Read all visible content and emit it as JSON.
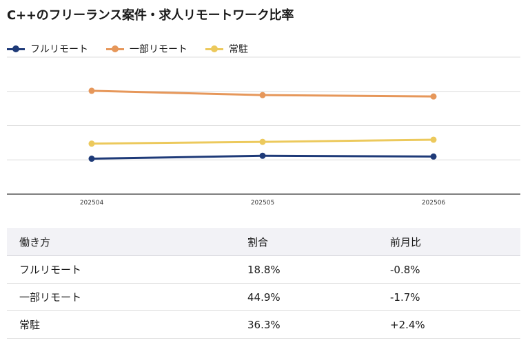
{
  "title": "C++のフリーランス案件・求人リモートワーク比率",
  "colors": {
    "full_remote": "#1e3a78",
    "partial_remote": "#e6975a",
    "onsite": "#ecc95c",
    "grid": "#dcdcdc",
    "axis": "#333333"
  },
  "chart_data": {
    "type": "line",
    "categories": [
      "202504",
      "202505",
      "202506"
    ],
    "series": [
      {
        "name": "フルリモート",
        "values": [
          18.1,
          19.6,
          19.2
        ]
      },
      {
        "name": "一部リモート",
        "values": [
          52.8,
          50.6,
          49.9
        ]
      },
      {
        "name": "常駐",
        "values": [
          25.8,
          26.7,
          27.8
        ]
      }
    ],
    "ylim": [
      0,
      70
    ],
    "grid": true,
    "legend": "top-left",
    "xlabel": "",
    "ylabel": ""
  },
  "table": {
    "headers": [
      "働き方",
      "割合",
      "前月比"
    ],
    "rows": [
      [
        "フルリモート",
        "18.8%",
        "-0.8%"
      ],
      [
        "一部リモート",
        "44.9%",
        "-1.7%"
      ],
      [
        "常駐",
        "36.3%",
        "+2.4%"
      ]
    ]
  }
}
